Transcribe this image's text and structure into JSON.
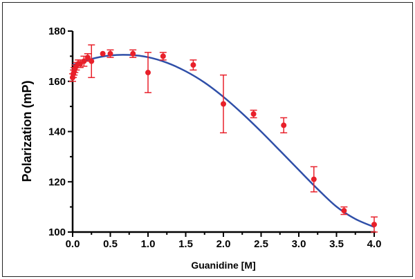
{
  "chart_data": {
    "type": "scatter",
    "title": "",
    "xlabel": "Guanidine [M]",
    "ylabel": "Polarization (mP)",
    "xlim": [
      0.0,
      4.0
    ],
    "ylim": [
      100,
      180
    ],
    "x_ticks": [
      "0.0",
      "0.5",
      "1.0",
      "1.5",
      "2.0",
      "2.5",
      "3.0",
      "3.5",
      "4.0"
    ],
    "y_ticks": [
      "100",
      "120",
      "140",
      "160",
      "180"
    ],
    "grid": false,
    "legend": "none",
    "colors": {
      "points": "#e8202a",
      "fit_line": "#2f4fa8",
      "axis": "#000000"
    },
    "series": [
      {
        "kind": "points_with_error_bars",
        "x": [
          0.0,
          0.01,
          0.02,
          0.03,
          0.05,
          0.075,
          0.1,
          0.15,
          0.2,
          0.25,
          0.4,
          0.5,
          0.8,
          1.0,
          1.2,
          1.6,
          2.0,
          2.4,
          2.8,
          3.2,
          3.6,
          4.0
        ],
        "y": [
          161.5,
          163.0,
          164.0,
          165.0,
          166.0,
          167.0,
          167.0,
          168.0,
          169.5,
          168.0,
          171.0,
          171.0,
          171.0,
          163.5,
          170.0,
          166.5,
          151.0,
          147.0,
          142.5,
          121.0,
          108.5,
          103.0
        ],
        "error": [
          1.5,
          1.5,
          1.5,
          1.5,
          1.5,
          1.5,
          1.5,
          2.0,
          1.5,
          6.5,
          0.0,
          1.5,
          1.5,
          8.0,
          1.5,
          2.0,
          11.5,
          1.5,
          3.0,
          5.0,
          1.5,
          3.0
        ]
      },
      {
        "kind": "fit_curve",
        "x": [
          0.0,
          0.25,
          0.5,
          0.75,
          1.0,
          1.25,
          1.5,
          1.75,
          2.0,
          2.25,
          2.5,
          2.75,
          3.0,
          3.25,
          3.5,
          3.75,
          4.0
        ],
        "y": [
          166.5,
          168.9,
          170.3,
          170.5,
          169.6,
          167.4,
          164.0,
          159.5,
          153.8,
          147.2,
          140.0,
          132.4,
          124.7,
          117.1,
          110.1,
          105.2,
          102.0
        ]
      }
    ]
  }
}
